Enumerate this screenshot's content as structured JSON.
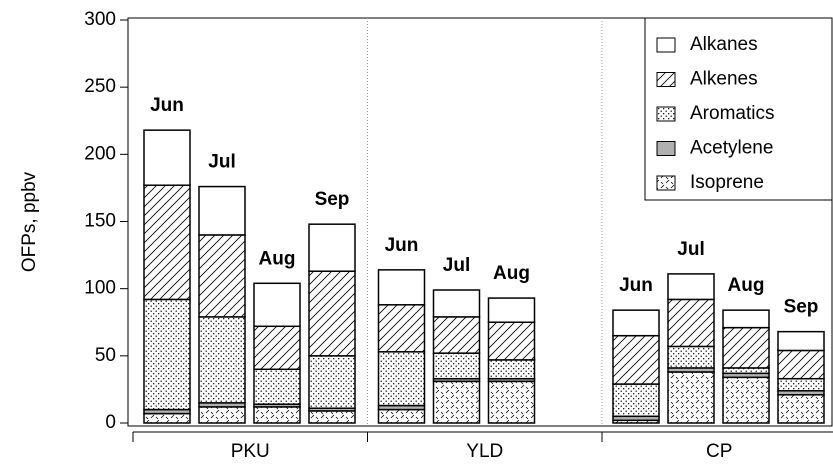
{
  "chart_data": {
    "type": "stacked-bar",
    "ylabel": "OFPs, ppbv",
    "ylim": [
      0,
      300
    ],
    "yticks": [
      0,
      50,
      100,
      150,
      200,
      250,
      300
    ],
    "groups": [
      {
        "name": "PKU",
        "categories": [
          "Jun",
          "Jul",
          "Aug",
          "Sep"
        ]
      },
      {
        "name": "YLD",
        "categories": [
          "Jun",
          "Jul",
          "Aug"
        ]
      },
      {
        "name": "CP",
        "categories": [
          "Jun",
          "Jul",
          "Aug",
          "Sep"
        ]
      }
    ],
    "series": [
      {
        "name": "Isoprene",
        "color": "#ffffff",
        "pattern": "dash",
        "values": [
          7,
          12,
          12,
          9,
          10,
          31,
          31,
          2,
          38,
          34,
          21
        ]
      },
      {
        "name": "Acetylene",
        "color": "#b0b0b0",
        "pattern": "solid",
        "values": [
          3,
          3,
          2,
          2,
          3,
          2,
          2,
          3,
          3,
          3,
          3
        ]
      },
      {
        "name": "Aromatics",
        "color": "#ffffff",
        "pattern": "dots",
        "values": [
          82,
          64,
          26,
          39,
          40,
          19,
          14,
          24,
          16,
          4,
          9
        ]
      },
      {
        "name": "Alkenes",
        "color": "#ffffff",
        "pattern": "hatch",
        "values": [
          85,
          61,
          32,
          63,
          35,
          27,
          28,
          36,
          35,
          30,
          21
        ]
      },
      {
        "name": "Alkanes",
        "color": "#ffffff",
        "pattern": "solid",
        "values": [
          41,
          36,
          32,
          35,
          26,
          20,
          18,
          19,
          19,
          13,
          14
        ]
      }
    ],
    "legend": "upper right"
  }
}
